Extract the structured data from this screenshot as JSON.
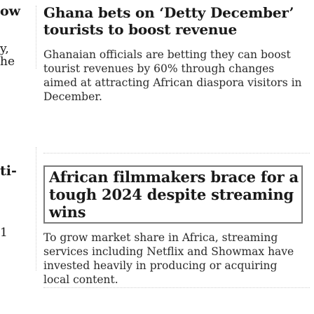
{
  "left_column_fragments": [
    "ow",
    "y,",
    "he",
    "ti-",
    "1"
  ],
  "stories": [
    {
      "headline": "Ghana bets on ‘Detty December’ tourists to boost revenue",
      "summary": "Ghanaian officials are betting they can boost tourist revenues by 60% through changes aimed at attracting African diaspora visitors in December."
    },
    {
      "headline": "African filmmakers brace for a tough 2024 despite streaming wins",
      "summary": "To grow market share in Africa, streaming services including Netflix and Showmax have invested heavily in producing or acquiring local content."
    }
  ]
}
